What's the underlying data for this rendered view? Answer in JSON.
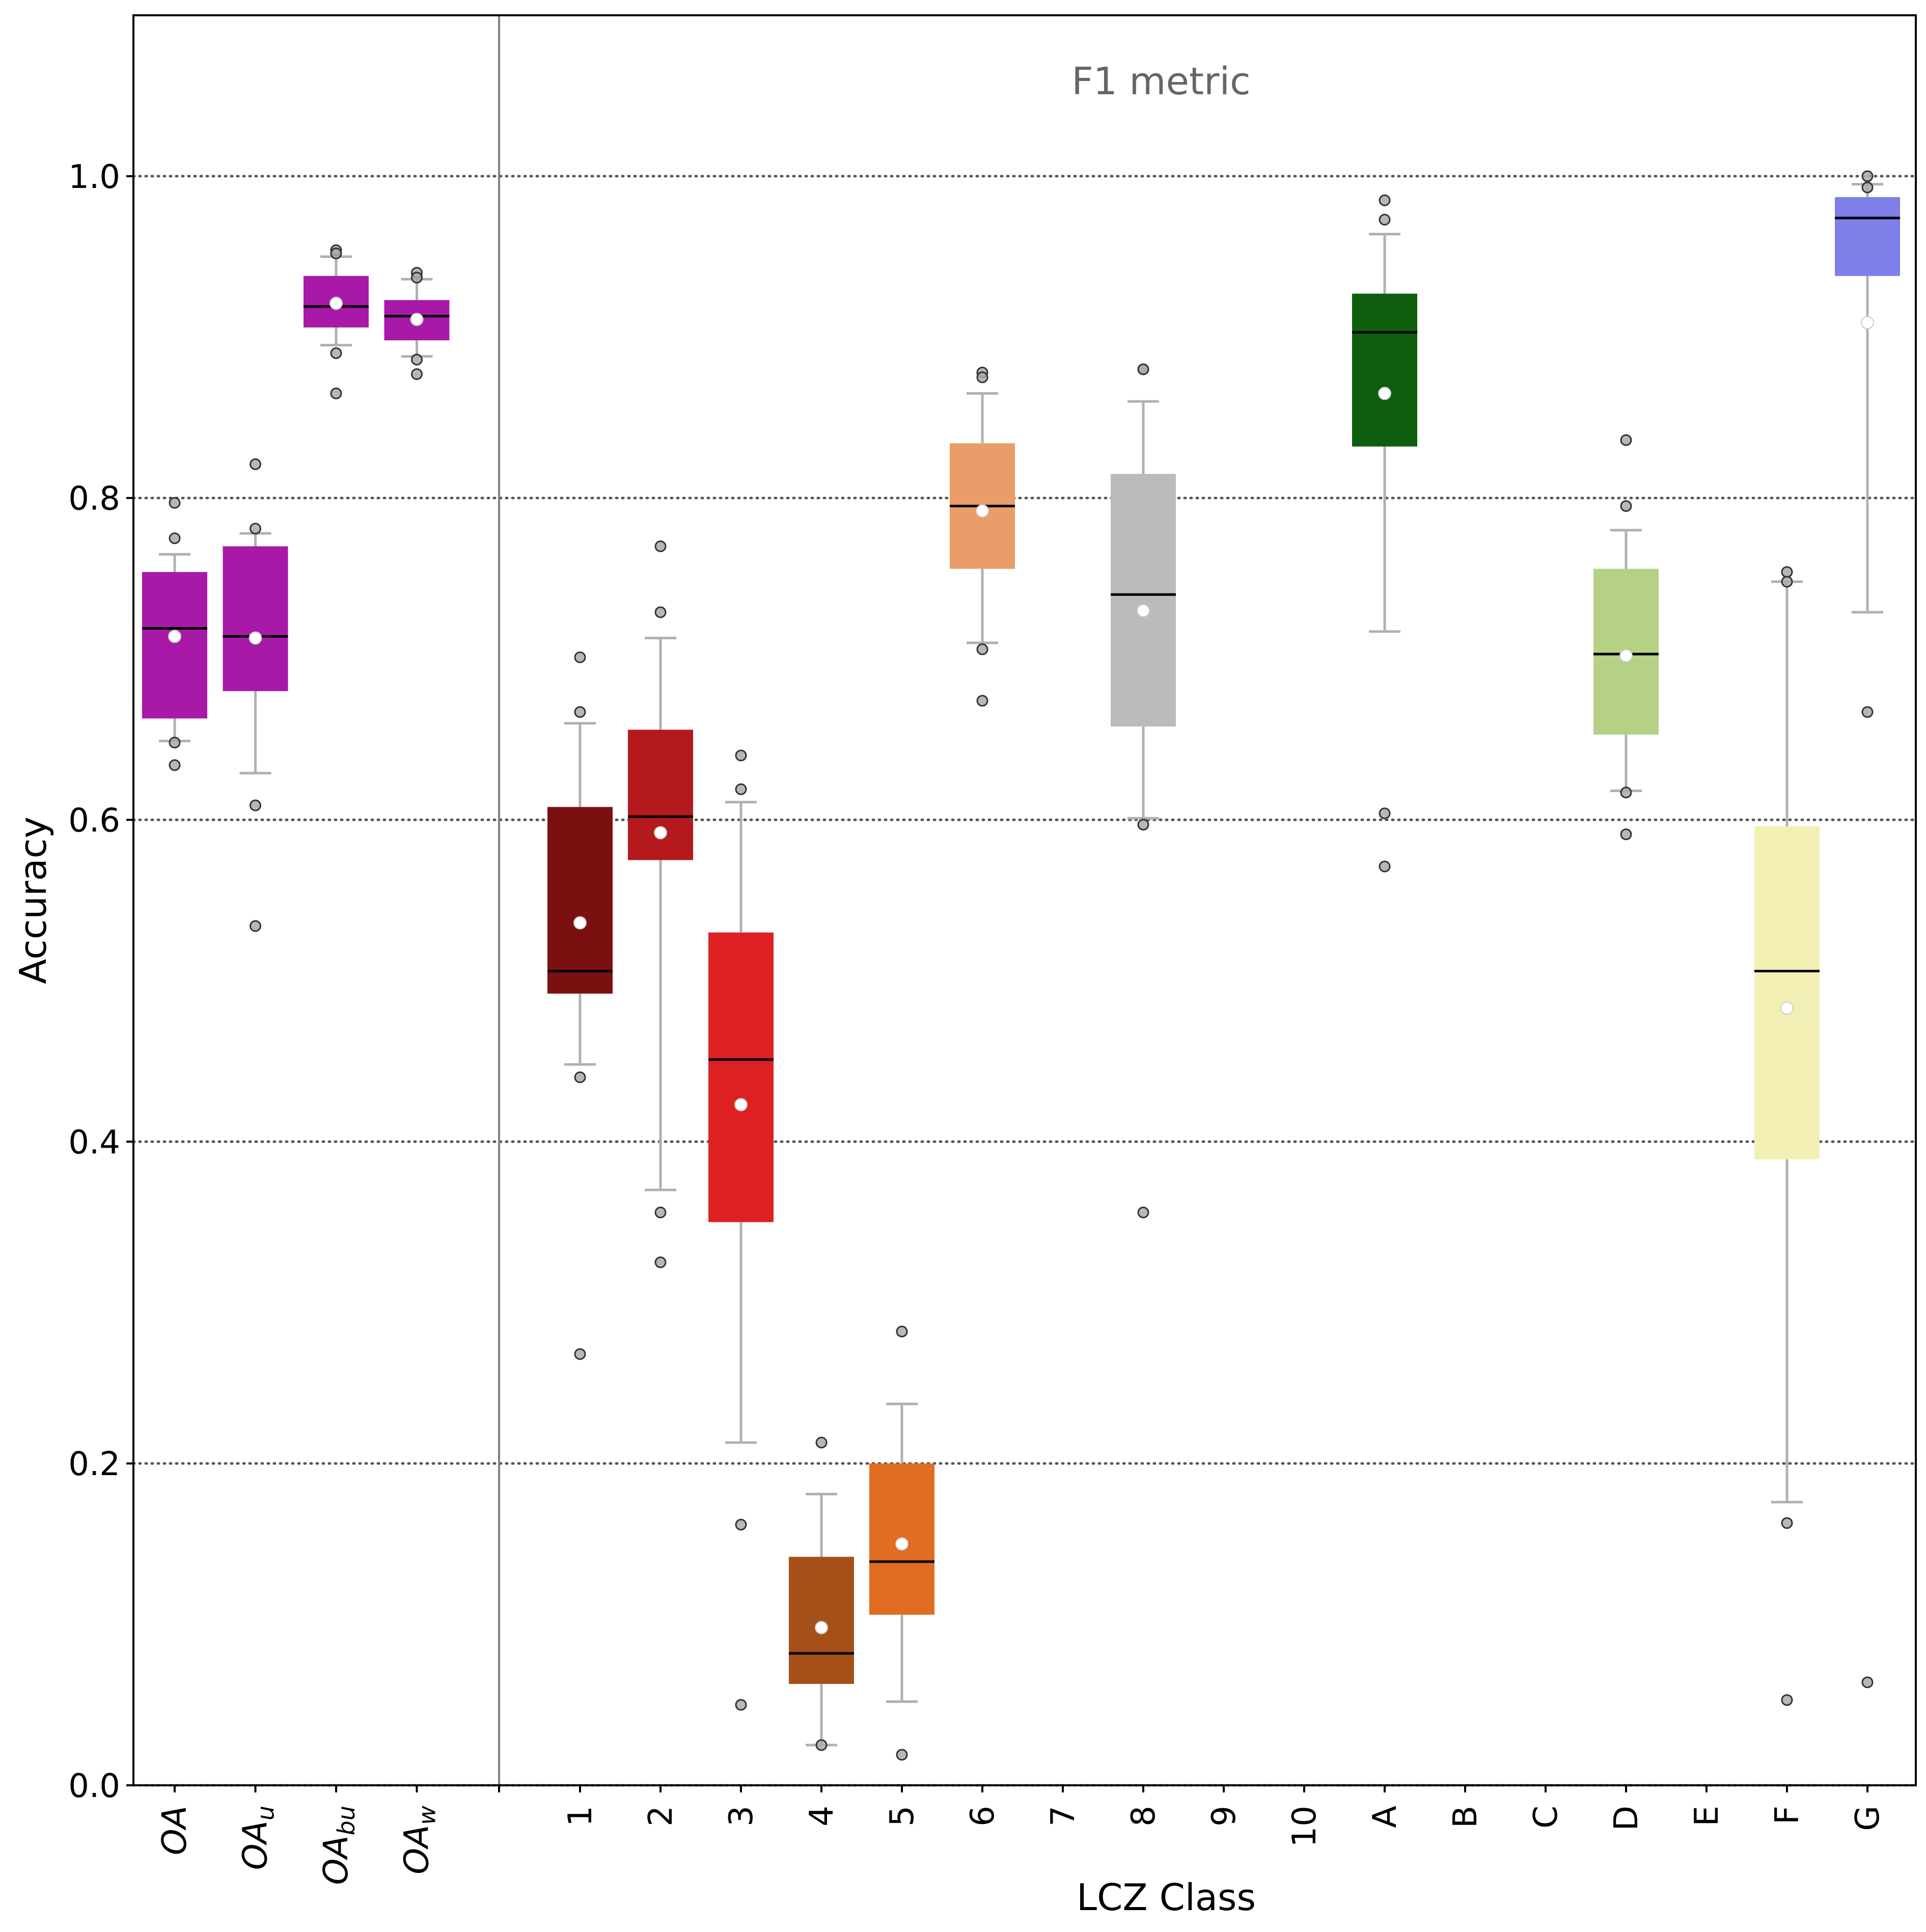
{
  "chart_data": {
    "type": "box",
    "annotation": "F1 metric",
    "xlabel": "LCZ Class",
    "ylabel": "Accuracy",
    "ylim": [
      0.0,
      1.1
    ],
    "yticks": [
      0.0,
      0.2,
      0.4,
      0.6,
      0.8,
      1.0
    ],
    "ytick_labels": [
      "0.0",
      "0.2",
      "0.4",
      "0.6",
      "0.8",
      "1.0"
    ],
    "grid": "horizontal dotted",
    "overall_boxes": [
      {
        "key": "OA",
        "label_main": "OA",
        "label_sub": "",
        "color": "#a819a8",
        "q1": 0.663,
        "median": 0.719,
        "q3": 0.754,
        "mean": 0.714,
        "whisker_low": 0.649,
        "whisker_high": 0.765,
        "fliers": [
          0.797,
          0.775,
          0.648,
          0.634
        ]
      },
      {
        "key": "OA_u",
        "label_main": "OA",
        "label_sub": "u",
        "color": "#a819a8",
        "q1": 0.68,
        "median": 0.714,
        "q3": 0.77,
        "mean": 0.713,
        "whisker_low": 0.629,
        "whisker_high": 0.778,
        "fliers": [
          0.821,
          0.781,
          0.609,
          0.534
        ]
      },
      {
        "key": "OA_bu",
        "label_main": "OA",
        "label_sub": "bu",
        "color": "#a819a8",
        "q1": 0.906,
        "median": 0.919,
        "q3": 0.938,
        "mean": 0.921,
        "whisker_low": 0.895,
        "whisker_high": 0.95,
        "fliers": [
          0.954,
          0.952,
          0.89,
          0.865
        ]
      },
      {
        "key": "OA_w",
        "label_main": "OA",
        "label_sub": "w",
        "color": "#a819a8",
        "q1": 0.898,
        "median": 0.913,
        "q3": 0.923,
        "mean": 0.911,
        "whisker_low": 0.888,
        "whisker_high": 0.936,
        "fliers": [
          0.94,
          0.937,
          0.886,
          0.877
        ]
      }
    ],
    "categories": [
      "1",
      "2",
      "3",
      "4",
      "5",
      "6",
      "7",
      "8",
      "9",
      "10",
      "A",
      "B",
      "C",
      "D",
      "E",
      "F",
      "G"
    ],
    "class_boxes": [
      {
        "label": "1",
        "color": "#7b1010",
        "q1": 0.492,
        "median": 0.506,
        "q3": 0.608,
        "mean": 0.536,
        "whisker_low": 0.448,
        "whisker_high": 0.66,
        "fliers": [
          0.701,
          0.667,
          0.44,
          0.268
        ]
      },
      {
        "label": "2",
        "color": "#b3191d",
        "q1": 0.575,
        "median": 0.602,
        "q3": 0.656,
        "mean": 0.592,
        "whisker_low": 0.37,
        "whisker_high": 0.713,
        "fliers": [
          0.77,
          0.729,
          0.356,
          0.325
        ]
      },
      {
        "label": "3",
        "color": "#dd2123",
        "q1": 0.35,
        "median": 0.451,
        "q3": 0.53,
        "mean": 0.423,
        "whisker_low": 0.213,
        "whisker_high": 0.611,
        "fliers": [
          0.64,
          0.619,
          0.162,
          0.05
        ]
      },
      {
        "label": "4",
        "color": "#a65019",
        "q1": 0.063,
        "median": 0.082,
        "q3": 0.142,
        "mean": 0.098,
        "whisker_low": 0.025,
        "whisker_high": 0.181,
        "fliers": [
          0.213,
          0.025
        ]
      },
      {
        "label": "5",
        "color": "#e06d21",
        "q1": 0.106,
        "median": 0.139,
        "q3": 0.2,
        "mean": 0.15,
        "whisker_low": 0.052,
        "whisker_high": 0.237,
        "fliers": [
          0.282,
          0.019
        ]
      },
      {
        "label": "6",
        "color": "#ea9c69",
        "q1": 0.756,
        "median": 0.795,
        "q3": 0.834,
        "mean": 0.792,
        "whisker_low": 0.71,
        "whisker_high": 0.865,
        "fliers": [
          0.878,
          0.875,
          0.706,
          0.674
        ]
      },
      {
        "label": "7",
        "empty": true
      },
      {
        "label": "8",
        "color": "#bbbbbb",
        "q1": 0.658,
        "median": 0.74,
        "q3": 0.815,
        "mean": 0.73,
        "whisker_low": 0.601,
        "whisker_high": 0.86,
        "fliers": [
          0.88,
          0.88,
          0.597,
          0.356
        ]
      },
      {
        "label": "9",
        "empty": true
      },
      {
        "label": "10",
        "empty": true
      },
      {
        "label": "A",
        "color": "#0d5e0d",
        "q1": 0.832,
        "median": 0.903,
        "q3": 0.927,
        "mean": 0.865,
        "whisker_low": 0.717,
        "whisker_high": 0.964,
        "fliers": [
          0.985,
          0.973,
          0.604,
          0.571
        ]
      },
      {
        "label": "B",
        "empty": true
      },
      {
        "label": "C",
        "empty": true
      },
      {
        "label": "D",
        "color": "#b5d185",
        "q1": 0.653,
        "median": 0.703,
        "q3": 0.756,
        "mean": 0.702,
        "whisker_low": 0.618,
        "whisker_high": 0.78,
        "fliers": [
          0.836,
          0.795,
          0.617,
          0.591
        ]
      },
      {
        "label": "E",
        "empty": true
      },
      {
        "label": "F",
        "color": "#f2efb4",
        "q1": 0.389,
        "median": 0.506,
        "q3": 0.596,
        "mean": 0.483,
        "whisker_low": 0.176,
        "whisker_high": 0.748,
        "fliers": [
          0.754,
          0.748,
          0.163,
          0.053
        ]
      },
      {
        "label": "G",
        "color": "#7f7fea",
        "q1": 0.938,
        "median": 0.974,
        "q3": 0.987,
        "mean": 0.909,
        "whisker_low": 0.729,
        "whisker_high": 0.995,
        "fliers": [
          1.0,
          0.993,
          0.667,
          0.064
        ]
      }
    ]
  }
}
